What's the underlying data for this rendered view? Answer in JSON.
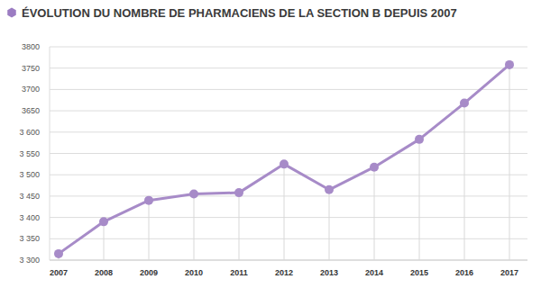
{
  "chart_data": {
    "type": "line",
    "title": "ÉVOLUTION DU NOMBRE DE PHARMACIENS DE LA SECTION B DEPUIS 2007",
    "categories": [
      "2007",
      "2008",
      "2009",
      "2010",
      "2011",
      "2012",
      "2013",
      "2014",
      "2015",
      "2016",
      "2017"
    ],
    "values": [
      3315,
      3390,
      3440,
      3455,
      3458,
      3525,
      3465,
      3518,
      3583,
      3668,
      3758
    ],
    "color": "#a78bc8",
    "marker": "circle",
    "ylim": [
      3300,
      3800
    ],
    "yticks": [
      {
        "value": 3300,
        "label": "3 300"
      },
      {
        "value": 3350,
        "label": "3 350"
      },
      {
        "value": 3400,
        "label": "3 400"
      },
      {
        "value": 3450,
        "label": "3 450"
      },
      {
        "value": 3500,
        "label": "3 500"
      },
      {
        "value": 3550,
        "label": "3 550"
      },
      {
        "value": 3600,
        "label": "3 600"
      },
      3650,
      3700,
      3750,
      3800
    ],
    "grid": true
  }
}
